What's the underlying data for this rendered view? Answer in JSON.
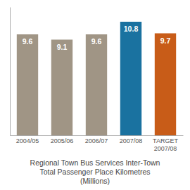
{
  "chart_data": {
    "type": "bar",
    "title": "Regional Town Bus Services Inter-Town\nTotal Passenger Place Kilometres\n(Millions)",
    "categories": [
      "2004/05",
      "2005/06",
      "2006/07",
      "2007/08",
      "TARGET\n2007/08"
    ],
    "values": [
      9.6,
      9.1,
      9.6,
      10.8,
      9.7
    ],
    "colors": [
      "#a09585",
      "#a09585",
      "#a09585",
      "#1a72a0",
      "#c85c18"
    ],
    "ylim": [
      0,
      12.2
    ],
    "grid": false,
    "data_labels": true,
    "tick_labels": "x"
  }
}
